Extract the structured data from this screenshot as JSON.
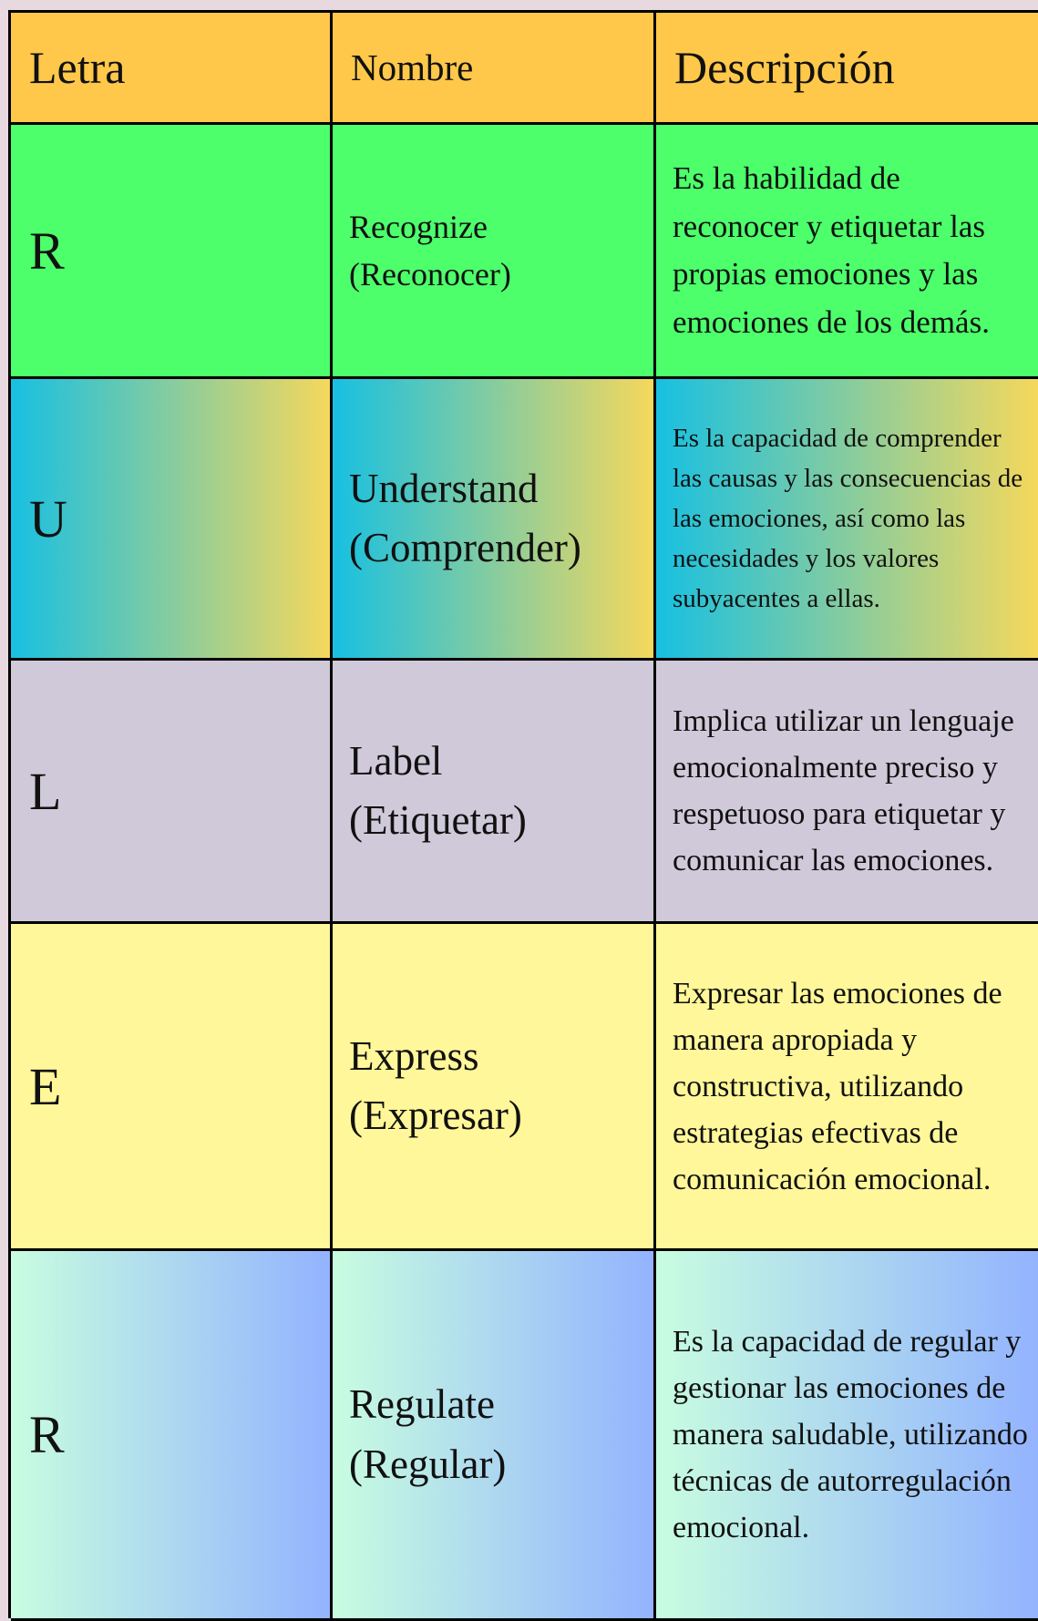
{
  "header": {
    "letter": "Letra",
    "name": "Nombre",
    "description": "Descripción"
  },
  "rows": [
    {
      "letter": "R",
      "name": "Recognize",
      "translation": "(Reconocer)",
      "description": "Es la habilidad de reconocer y etiquetar las propias emociones y las emociones de los demás."
    },
    {
      "letter": "U",
      "name": "Understand",
      "translation": "(Comprender)",
      "description": "Es la capacidad de comprender las causas y las consecuencias de las emociones, así como las necesidades y los valores subyacentes a ellas."
    },
    {
      "letter": "L",
      "name": "Label",
      "translation": "(Etiquetar)",
      "description": "Implica utilizar un lenguaje emocionalmente preciso y respetuoso para etiquetar y comunicar las emociones."
    },
    {
      "letter": "E",
      "name": "Express",
      "translation": "(Expresar)",
      "description": "Expresar las emociones de manera apropiada y constructiva, utilizando estrategias efectivas de comunicación emocional."
    },
    {
      "letter": "R",
      "name": "Regulate",
      "translation": "(Regular)",
      "description": "Es la capacidad de regular y gestionar las emociones de manera saludable, utilizando técnicas de autorregulación emocional."
    }
  ]
}
